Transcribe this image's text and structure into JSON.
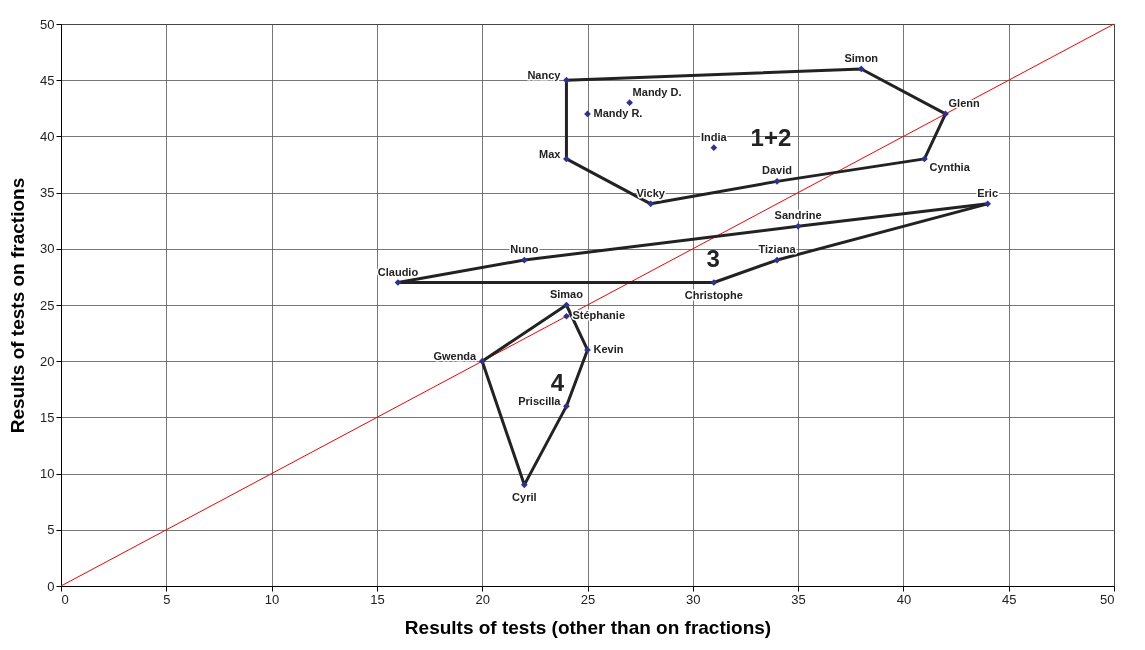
{
  "chart_data": {
    "type": "scatter",
    "xlabel": "Results of tests  (other than on fractions)",
    "ylabel": "Results of tests on fractions",
    "xlim": [
      0,
      50
    ],
    "ylim": [
      0,
      50
    ],
    "xticks": [
      0,
      5,
      10,
      15,
      20,
      25,
      30,
      35,
      40,
      45,
      50
    ],
    "yticks": [
      0,
      5,
      10,
      15,
      20,
      25,
      30,
      35,
      40,
      45,
      50
    ],
    "grid": true,
    "series": [
      {
        "type": "line",
        "color": "#ff0000",
        "x": [
          0,
          50
        ],
        "values": [
          0,
          50
        ]
      },
      {
        "type": "line",
        "color": "#222222",
        "x": [
          24,
          38,
          42
        ],
        "values": [
          45,
          46,
          42
        ]
      },
      {
        "type": "line",
        "color": "#222222",
        "x": [
          24,
          24,
          28,
          34,
          41,
          42
        ],
        "values": [
          45,
          38,
          34,
          36,
          38,
          42
        ]
      },
      {
        "type": "line",
        "color": "#222222",
        "x": [
          16,
          22,
          35,
          44
        ],
        "values": [
          27,
          29,
          32,
          34
        ]
      },
      {
        "type": "line",
        "color": "#222222",
        "x": [
          16,
          31,
          34,
          44
        ],
        "values": [
          27,
          27,
          29,
          34
        ]
      },
      {
        "type": "line",
        "color": "#222222",
        "x": [
          20,
          24,
          25
        ],
        "values": [
          20,
          25,
          21
        ]
      },
      {
        "type": "line",
        "color": "#222222",
        "x": [
          20,
          22,
          24,
          25
        ],
        "values": [
          20,
          9,
          16,
          21
        ]
      },
      {
        "type": "scatter",
        "color": "#2e3192",
        "marker": "diamond",
        "x": [
          24,
          38,
          27,
          25,
          42,
          31,
          24,
          41,
          34,
          28,
          44,
          35,
          22,
          34,
          16,
          31,
          24,
          24,
          25,
          20,
          24,
          22
        ],
        "values": [
          45,
          46,
          43,
          42,
          42,
          39,
          38,
          38,
          36,
          34,
          34,
          32,
          29,
          29,
          27,
          27,
          25,
          24,
          21,
          20,
          16,
          9
        ]
      }
    ],
    "annotations": [
      {
        "text": "Nancy",
        "x": 24,
        "y": 45
      },
      {
        "text": "Simon",
        "x": 38,
        "y": 46
      },
      {
        "text": "Mandy D.",
        "x": 27,
        "y": 43
      },
      {
        "text": "Mandy R.",
        "x": 25,
        "y": 42
      },
      {
        "text": "Glenn",
        "x": 42,
        "y": 42
      },
      {
        "text": "India",
        "x": 31,
        "y": 39
      },
      {
        "text": "Max",
        "x": 24,
        "y": 38
      },
      {
        "text": "Cynthia",
        "x": 41,
        "y": 38
      },
      {
        "text": "David",
        "x": 34,
        "y": 36
      },
      {
        "text": "Vicky",
        "x": 28,
        "y": 34
      },
      {
        "text": "Eric",
        "x": 44,
        "y": 34
      },
      {
        "text": "Sandrine",
        "x": 35,
        "y": 32
      },
      {
        "text": "Nuno",
        "x": 22,
        "y": 29
      },
      {
        "text": "Tiziana",
        "x": 34,
        "y": 29
      },
      {
        "text": "Claudio",
        "x": 16,
        "y": 27
      },
      {
        "text": "Christophe",
        "x": 31,
        "y": 27
      },
      {
        "text": "Simao",
        "x": 24,
        "y": 25
      },
      {
        "text": "Stéphanie",
        "x": 24,
        "y": 24
      },
      {
        "text": "Kevin",
        "x": 25,
        "y": 21
      },
      {
        "text": "Gwenda",
        "x": 20,
        "y": 20
      },
      {
        "text": "Priscilla",
        "x": 24,
        "y": 16
      },
      {
        "text": "Cyril",
        "x": 22,
        "y": 9
      },
      "1+2",
      "3",
      "4"
    ]
  }
}
